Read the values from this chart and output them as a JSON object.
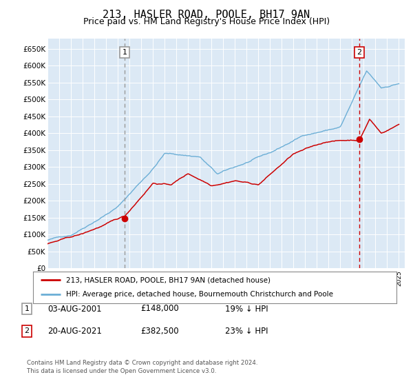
{
  "title": "213, HASLER ROAD, POOLE, BH17 9AN",
  "subtitle": "Price paid vs. HM Land Registry's House Price Index (HPI)",
  "title_fontsize": 11,
  "subtitle_fontsize": 9,
  "ylabel_ticks": [
    "£0",
    "£50K",
    "£100K",
    "£150K",
    "£200K",
    "£250K",
    "£300K",
    "£350K",
    "£400K",
    "£450K",
    "£500K",
    "£550K",
    "£600K",
    "£650K"
  ],
  "ytick_values": [
    0,
    50000,
    100000,
    150000,
    200000,
    250000,
    300000,
    350000,
    400000,
    450000,
    500000,
    550000,
    600000,
    650000
  ],
  "ylim": [
    0,
    680000
  ],
  "xlim_start": 1995.0,
  "xlim_end": 2025.5,
  "background_color": "#dce9f5",
  "grid_color": "#ffffff",
  "red_line_color": "#cc0000",
  "blue_line_color": "#6baed6",
  "marker_color": "#cc0000",
  "dashed_line1_color": "#999999",
  "dashed_line2_color": "#cc0000",
  "point1_x": 2001.58,
  "point1_y": 148000,
  "point2_x": 2021.63,
  "point2_y": 382500,
  "legend_label_red": "213, HASLER ROAD, POOLE, BH17 9AN (detached house)",
  "legend_label_blue": "HPI: Average price, detached house, Bournemouth Christchurch and Poole",
  "table_row1": [
    "1",
    "03-AUG-2001",
    "£148,000",
    "19% ↓ HPI"
  ],
  "table_row2": [
    "2",
    "20-AUG-2021",
    "£382,500",
    "23% ↓ HPI"
  ],
  "footer": "Contains HM Land Registry data © Crown copyright and database right 2024.\nThis data is licensed under the Open Government Licence v3.0."
}
